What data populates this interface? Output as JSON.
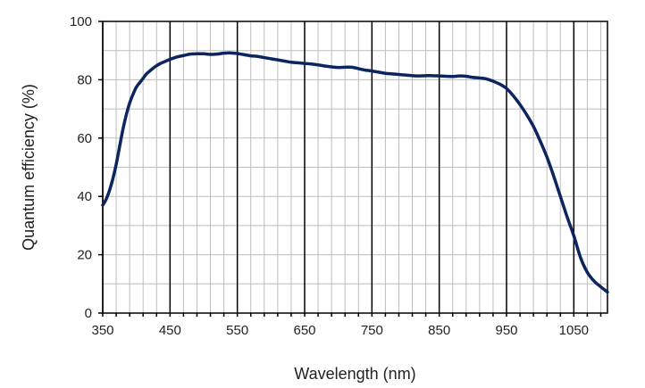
{
  "chart_data": {
    "type": "line",
    "title": "",
    "xlabel": "Wavelength (nm)",
    "ylabel": "Quantum efficiency (%)",
    "xlim": [
      350,
      1100
    ],
    "ylim": [
      0,
      100
    ],
    "x_ticks": [
      350,
      450,
      550,
      650,
      750,
      850,
      950,
      1050
    ],
    "y_ticks": [
      0,
      20,
      40,
      60,
      80,
      100
    ],
    "x_minor_step": 20,
    "y_minor_step": 10,
    "grid": true,
    "legend": "none",
    "colors": {
      "line": "#0d2460",
      "major_grid": "#000000",
      "minor_grid": "#bdbdbd"
    },
    "series": [
      {
        "x": [
          350,
          355,
          360,
          365,
          370,
          375,
          380,
          385,
          390,
          395,
          400,
          405,
          410,
          415,
          420,
          425,
          430,
          435,
          440,
          445,
          450,
          460,
          470,
          480,
          490,
          500,
          510,
          520,
          530,
          540,
          550,
          560,
          570,
          580,
          590,
          600,
          610,
          620,
          630,
          640,
          650,
          660,
          670,
          680,
          690,
          700,
          710,
          720,
          730,
          740,
          750,
          760,
          770,
          780,
          790,
          800,
          810,
          820,
          830,
          840,
          850,
          860,
          870,
          880,
          890,
          900,
          910,
          920,
          930,
          940,
          950,
          960,
          970,
          980,
          990,
          1000,
          1010,
          1020,
          1030,
          1040,
          1050,
          1060,
          1070,
          1080,
          1090,
          1100
        ],
        "y": [
          37,
          39,
          42,
          46,
          51,
          57,
          63,
          68,
          72,
          75,
          77.5,
          79,
          80.5,
          82,
          83,
          84,
          84.8,
          85.5,
          86,
          86.5,
          87,
          87.8,
          88.3,
          88.8,
          88.9,
          88.9,
          88.7,
          88.8,
          89.1,
          89.2,
          89,
          88.6,
          88.2,
          88,
          87.6,
          87.2,
          86.8,
          86.4,
          86,
          85.8,
          85.6,
          85.4,
          85.1,
          84.7,
          84.4,
          84.2,
          84.3,
          84.3,
          83.8,
          83.3,
          83,
          82.6,
          82.2,
          82,
          81.8,
          81.6,
          81.4,
          81.3,
          81.4,
          81.4,
          81.3,
          81.2,
          81.1,
          81.3,
          81.2,
          80.8,
          80.6,
          80.3,
          79.5,
          78.5,
          77,
          74.5,
          71.5,
          68,
          64,
          59,
          53.5,
          47,
          40,
          33,
          26.5,
          19,
          14,
          11,
          9,
          7.2
        ]
      }
    ]
  }
}
